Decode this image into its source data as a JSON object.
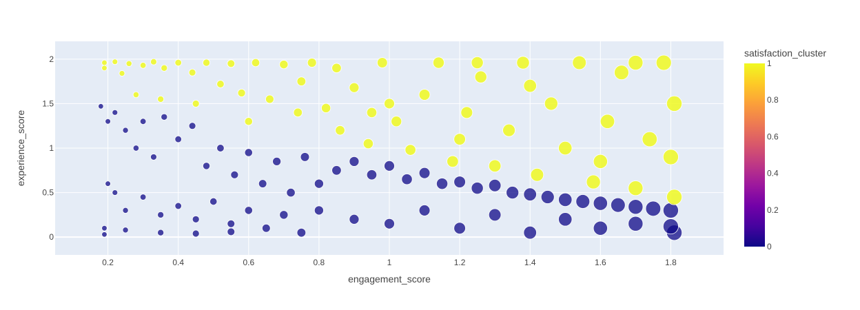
{
  "chart_data": {
    "type": "scatter",
    "title": "",
    "xlabel": "engagement_score",
    "ylabel": "experience_score",
    "xlim": [
      0.05,
      1.95
    ],
    "ylim": [
      -0.2,
      2.2
    ],
    "x_ticks": [
      {
        "value": 0.2,
        "label": "0.2"
      },
      {
        "value": 0.4,
        "label": "0.4"
      },
      {
        "value": 0.6,
        "label": "0.6"
      },
      {
        "value": 0.8,
        "label": "0.8"
      },
      {
        "value": 1.0,
        "label": "1"
      },
      {
        "value": 1.2,
        "label": "1.2"
      },
      {
        "value": 1.4,
        "label": "1.4"
      },
      {
        "value": 1.6,
        "label": "1.6"
      },
      {
        "value": 1.8,
        "label": "1.8"
      }
    ],
    "y_ticks": [
      {
        "value": 0,
        "label": "0"
      },
      {
        "value": 0.5,
        "label": "0.5"
      },
      {
        "value": 1.0,
        "label": "1"
      },
      {
        "value": 1.5,
        "label": "1.5"
      },
      {
        "value": 2.0,
        "label": "2"
      }
    ],
    "grid": true,
    "colorbar": {
      "title": "satisfaction_cluster",
      "range": [
        0,
        1
      ],
      "ticks": [
        {
          "value": 0,
          "label": "0"
        },
        {
          "value": 0.2,
          "label": "0.2"
        },
        {
          "value": 0.4,
          "label": "0.4"
        },
        {
          "value": 0.6,
          "label": "0.6"
        },
        {
          "value": 0.8,
          "label": "0.8"
        },
        {
          "value": 1,
          "label": "1"
        }
      ],
      "colorscale": [
        "#0d0887",
        "#46039f",
        "#7201a8",
        "#9c179e",
        "#bd3786",
        "#d8576b",
        "#ed7953",
        "#fb9f3a",
        "#fdca26",
        "#f0f921"
      ]
    },
    "cluster_colors": {
      "0": "#0d0887",
      "1": "#f0f921"
    },
    "points": [
      [
        0.19,
        1.96,
        1
      ],
      [
        0.19,
        1.9,
        1
      ],
      [
        0.22,
        1.97,
        1
      ],
      [
        0.24,
        1.84,
        1
      ],
      [
        0.26,
        1.95,
        1
      ],
      [
        0.3,
        1.93,
        1
      ],
      [
        0.33,
        1.97,
        1
      ],
      [
        0.36,
        1.9,
        1
      ],
      [
        0.4,
        1.96,
        1
      ],
      [
        0.44,
        1.85,
        1
      ],
      [
        0.48,
        1.96,
        1
      ],
      [
        0.52,
        1.72,
        1
      ],
      [
        0.55,
        1.95,
        1
      ],
      [
        0.58,
        1.62,
        1
      ],
      [
        0.62,
        1.96,
        1
      ],
      [
        0.66,
        1.55,
        1
      ],
      [
        0.7,
        1.94,
        1
      ],
      [
        0.74,
        1.4,
        1
      ],
      [
        0.78,
        1.96,
        1
      ],
      [
        0.82,
        1.45,
        1
      ],
      [
        0.86,
        1.2,
        1
      ],
      [
        0.9,
        1.68,
        1
      ],
      [
        0.94,
        1.05,
        1
      ],
      [
        0.98,
        1.96,
        1
      ],
      [
        1.02,
        1.3,
        1
      ],
      [
        1.06,
        0.98,
        1
      ],
      [
        1.1,
        1.6,
        1
      ],
      [
        1.14,
        1.96,
        1
      ],
      [
        1.18,
        0.85,
        1
      ],
      [
        1.22,
        1.4,
        1
      ],
      [
        1.26,
        1.8,
        1
      ],
      [
        1.3,
        0.8,
        1
      ],
      [
        1.34,
        1.2,
        1
      ],
      [
        1.38,
        1.96,
        1
      ],
      [
        1.42,
        0.7,
        1
      ],
      [
        1.46,
        1.5,
        1
      ],
      [
        1.5,
        1.0,
        1
      ],
      [
        1.54,
        1.96,
        1
      ],
      [
        1.58,
        0.62,
        1
      ],
      [
        1.62,
        1.3,
        1
      ],
      [
        1.66,
        1.85,
        1
      ],
      [
        1.7,
        0.55,
        1
      ],
      [
        1.74,
        1.1,
        1
      ],
      [
        1.78,
        1.96,
        1
      ],
      [
        1.81,
        0.45,
        1
      ],
      [
        1.81,
        1.5,
        1
      ],
      [
        1.6,
        0.85,
        1
      ],
      [
        1.4,
        1.7,
        1
      ],
      [
        1.2,
        1.1,
        1
      ],
      [
        1.0,
        1.5,
        1
      ],
      [
        0.35,
        1.55,
        1
      ],
      [
        0.28,
        1.6,
        1
      ],
      [
        0.45,
        1.5,
        1
      ],
      [
        0.6,
        1.3,
        1
      ],
      [
        0.75,
        1.75,
        1
      ],
      [
        0.85,
        1.9,
        1
      ],
      [
        0.95,
        1.4,
        1
      ],
      [
        1.7,
        1.96,
        1
      ],
      [
        1.8,
        0.9,
        1
      ],
      [
        1.25,
        1.96,
        1
      ],
      [
        0.18,
        1.47,
        0
      ],
      [
        0.2,
        1.3,
        0
      ],
      [
        0.22,
        1.4,
        0
      ],
      [
        0.25,
        1.2,
        0
      ],
      [
        0.28,
        1.0,
        0
      ],
      [
        0.3,
        1.3,
        0
      ],
      [
        0.33,
        0.9,
        0
      ],
      [
        0.36,
        1.35,
        0
      ],
      [
        0.4,
        1.1,
        0
      ],
      [
        0.44,
        1.25,
        0
      ],
      [
        0.48,
        0.8,
        0
      ],
      [
        0.52,
        1.0,
        0
      ],
      [
        0.56,
        0.7,
        0
      ],
      [
        0.6,
        0.95,
        0
      ],
      [
        0.64,
        0.6,
        0
      ],
      [
        0.68,
        0.85,
        0
      ],
      [
        0.72,
        0.5,
        0
      ],
      [
        0.76,
        0.9,
        0
      ],
      [
        0.8,
        0.6,
        0
      ],
      [
        0.85,
        0.75,
        0
      ],
      [
        0.9,
        0.85,
        0
      ],
      [
        0.95,
        0.7,
        0
      ],
      [
        1.0,
        0.8,
        0
      ],
      [
        1.05,
        0.65,
        0
      ],
      [
        1.1,
        0.72,
        0
      ],
      [
        1.15,
        0.6,
        0
      ],
      [
        1.2,
        0.62,
        0
      ],
      [
        1.25,
        0.55,
        0
      ],
      [
        1.3,
        0.58,
        0
      ],
      [
        1.35,
        0.5,
        0
      ],
      [
        1.4,
        0.48,
        0
      ],
      [
        1.45,
        0.45,
        0
      ],
      [
        1.5,
        0.42,
        0
      ],
      [
        1.55,
        0.4,
        0
      ],
      [
        1.6,
        0.38,
        0
      ],
      [
        1.65,
        0.36,
        0
      ],
      [
        1.7,
        0.34,
        0
      ],
      [
        1.75,
        0.32,
        0
      ],
      [
        1.8,
        0.3,
        0
      ],
      [
        1.81,
        0.05,
        0
      ],
      [
        0.2,
        0.6,
        0
      ],
      [
        0.22,
        0.5,
        0
      ],
      [
        0.25,
        0.3,
        0
      ],
      [
        0.3,
        0.45,
        0
      ],
      [
        0.35,
        0.25,
        0
      ],
      [
        0.4,
        0.35,
        0
      ],
      [
        0.45,
        0.2,
        0
      ],
      [
        0.5,
        0.4,
        0
      ],
      [
        0.55,
        0.15,
        0
      ],
      [
        0.6,
        0.3,
        0
      ],
      [
        0.65,
        0.1,
        0
      ],
      [
        0.7,
        0.25,
        0
      ],
      [
        0.75,
        0.05,
        0
      ],
      [
        0.8,
        0.3,
        0
      ],
      [
        0.9,
        0.2,
        0
      ],
      [
        1.0,
        0.15,
        0
      ],
      [
        1.1,
        0.3,
        0
      ],
      [
        1.2,
        0.1,
        0
      ],
      [
        1.3,
        0.25,
        0
      ],
      [
        1.4,
        0.05,
        0
      ],
      [
        1.5,
        0.2,
        0
      ],
      [
        1.6,
        0.1,
        0
      ],
      [
        1.7,
        0.15,
        0
      ],
      [
        1.8,
        0.12,
        0
      ],
      [
        0.19,
        0.1,
        0
      ],
      [
        0.19,
        0.03,
        0
      ],
      [
        0.25,
        0.08,
        0
      ],
      [
        0.35,
        0.05,
        0
      ],
      [
        0.45,
        0.04,
        0
      ],
      [
        0.55,
        0.06,
        0
      ]
    ]
  }
}
